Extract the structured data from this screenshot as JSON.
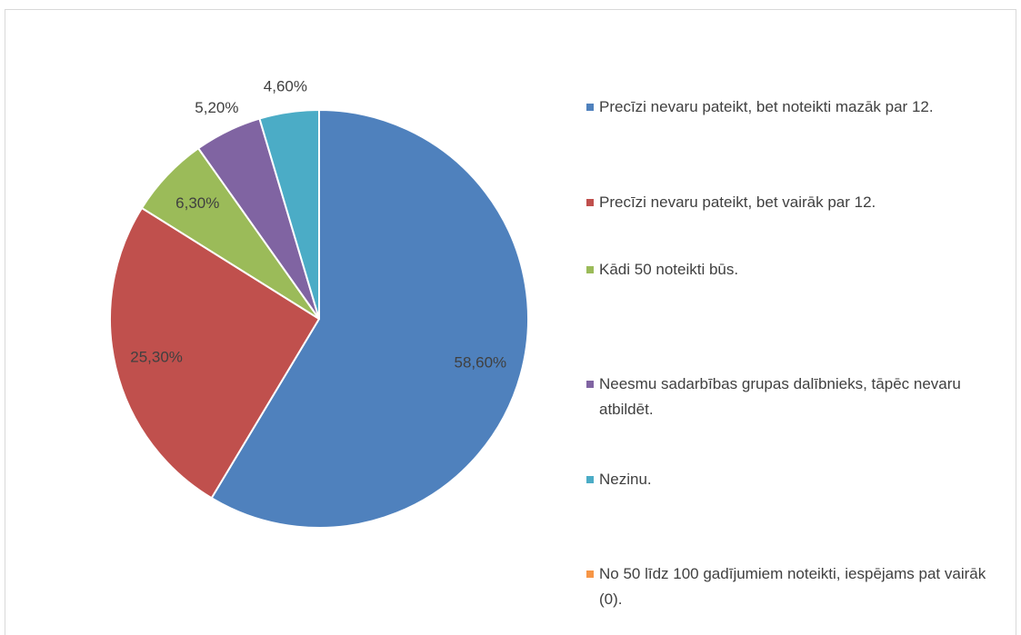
{
  "chart_data": {
    "type": "pie",
    "categories": [
      "Precīzi nevaru pateikt, bet noteikti mazāk par 12.",
      "Precīzi nevaru pateikt, bet vairāk par 12.",
      "Kādi 50 noteikti būs.",
      "Neesmu sadarbības grupas dalībnieks, tāpēc nevaru atbildēt.",
      "Nezinu.",
      "No 50 līdz 100 gadījumiem noteikti, iespējams pat vairāk (0)."
    ],
    "values": [
      58.6,
      25.3,
      6.3,
      5.2,
      4.6,
      0
    ],
    "value_labels": [
      "58,60%",
      "25,30%",
      "6,30%",
      "5,20%",
      "4,60%",
      null
    ],
    "colors": [
      "#4f81bd",
      "#c0504d",
      "#9bbb59",
      "#8064a2",
      "#4bacc6",
      "#f79646"
    ],
    "legend": "right"
  }
}
